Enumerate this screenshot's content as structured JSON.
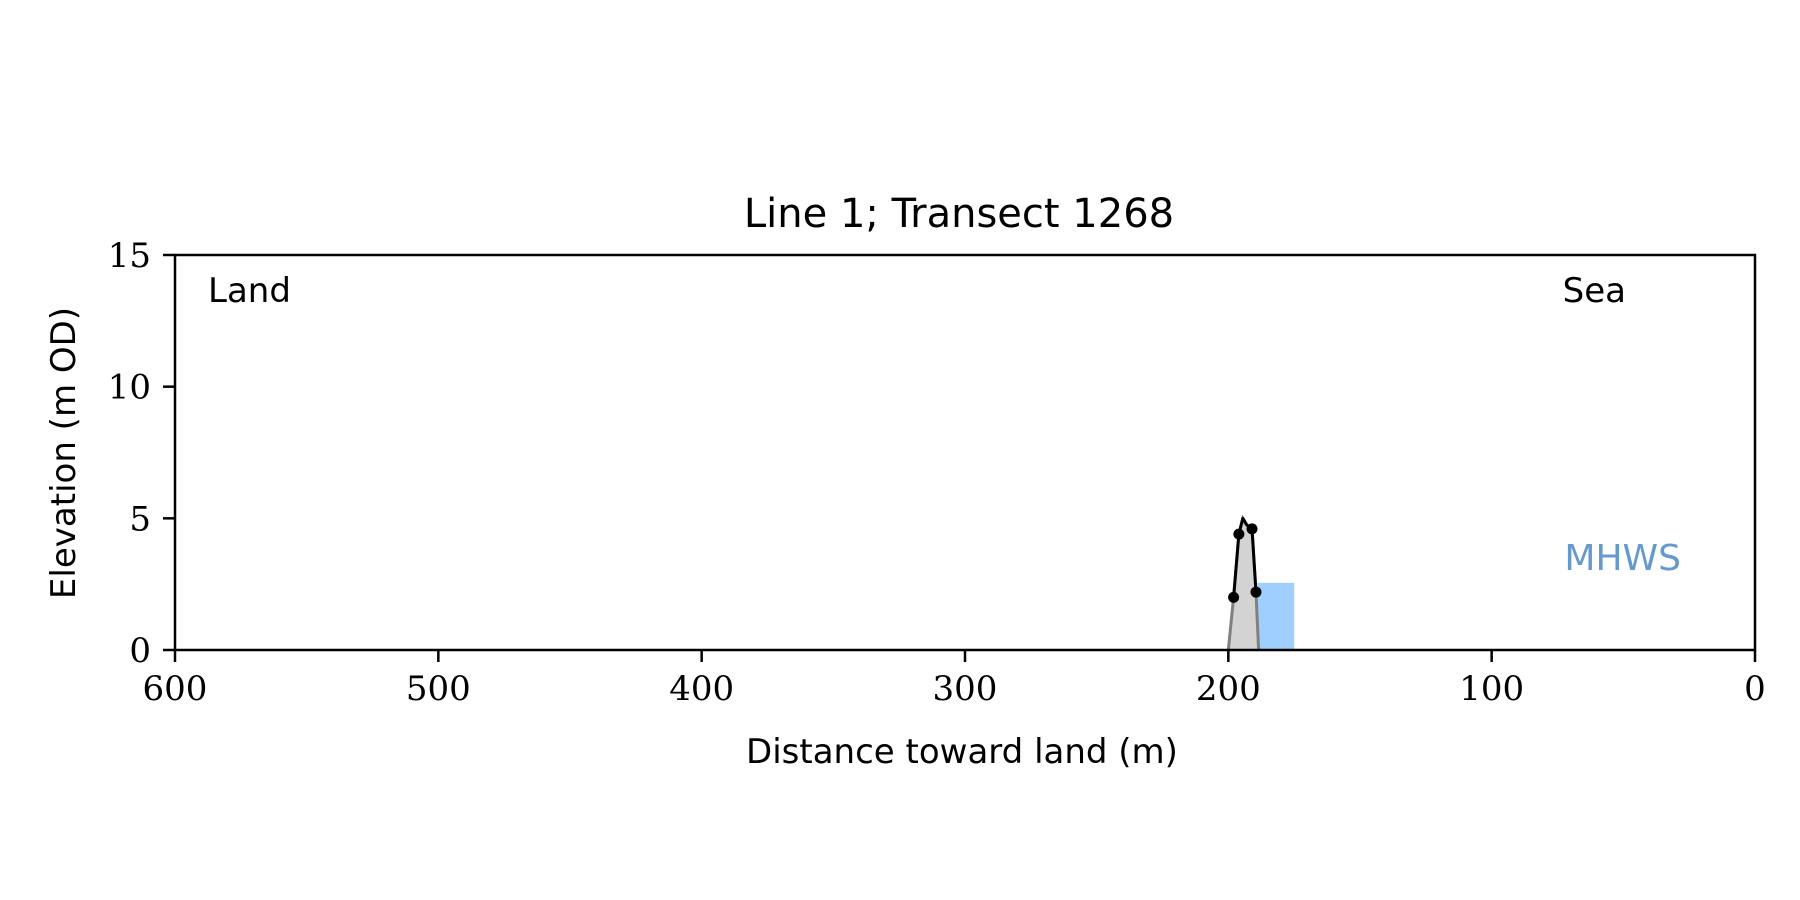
{
  "chart_data": {
    "type": "line",
    "title": "Line 1; Transect 1268",
    "xlabel": "Distance toward land (m)",
    "ylabel": "Elevation (m OD)",
    "xlim": [
      600,
      0
    ],
    "ylim": [
      0,
      15
    ],
    "x_ticks": [
      600,
      500,
      400,
      300,
      200,
      100,
      0
    ],
    "y_ticks": [
      0,
      5,
      10,
      15
    ],
    "x_tick_labels": [
      "600",
      "500",
      "400",
      "300",
      "200",
      "100",
      "0"
    ],
    "y_tick_labels": [
      "0",
      "5",
      "10",
      "15"
    ],
    "grid": false,
    "annotations": {
      "land_label": "Land",
      "sea_label": "Sea",
      "mhws_label": "MHWS"
    },
    "colors": {
      "profile_fill": "#d3d3d3",
      "profile_outline": "#808080",
      "crest_line": "#000000",
      "mhws": "#6699cc",
      "mhws_fill": "#9fcfff"
    },
    "mhws_band": {
      "x_from": 189,
      "x_to": 175,
      "y_from": 0,
      "y_to": 2.55
    },
    "series": [
      {
        "type": "area",
        "x": [
          200,
          198,
          196,
          194.5,
          193,
          191,
          189.5,
          188.5
        ],
        "y": [
          0,
          2.0,
          4.4,
          5.0,
          4.75,
          4.6,
          2.2,
          0
        ]
      },
      {
        "type": "line",
        "x": [
          198,
          196,
          194.5,
          193,
          191,
          189.5
        ],
        "y": [
          2.0,
          4.4,
          5.0,
          4.75,
          4.6,
          2.2
        ]
      },
      {
        "type": "scatter",
        "x": [
          198,
          196,
          191,
          189.5
        ],
        "y": [
          2.0,
          4.4,
          4.6,
          2.2
        ]
      }
    ]
  }
}
